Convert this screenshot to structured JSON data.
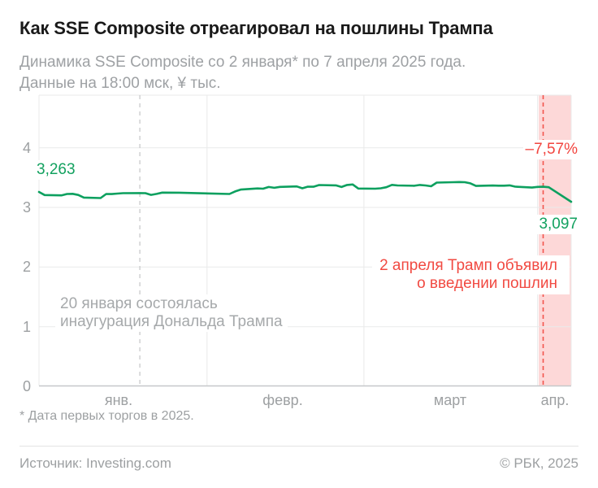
{
  "header": {
    "title": "Как SSE Composite отреагировал на пошлины Трампа",
    "subtitle_line1": "Динамика SSE Composite со 2 января* по 7 апреля 2025 года.",
    "subtitle_line2": "Данные на 18:00 мск, ¥ тыс."
  },
  "chart_data": {
    "type": "line",
    "title": "Динамика SSE Composite со 2 января по 7 апреля 2025 года, ¥ тыс.",
    "xlabel": "",
    "ylabel": "¥ тыс.",
    "ylim": [
      0,
      4.9
    ],
    "grid": true,
    "yticks": [
      4,
      3,
      2,
      1,
      0
    ],
    "ytick_labels": [
      "4",
      "3",
      "2",
      "1",
      "0"
    ],
    "xtick_labels": [
      "янв.",
      "февр.",
      "март",
      "апр."
    ],
    "month_gridlines": [
      "02-01",
      "03-01",
      "04-01"
    ],
    "colors": {
      "line": "#0da05f",
      "positive_label": "#12a15f",
      "negative_label": "#f2453f",
      "band": "#fdd8d8",
      "red_dash": "#f2544c",
      "gray_dash": "#c9cacc"
    },
    "series": [
      {
        "name": "SSE Composite",
        "color": "#0da05f",
        "points": [
          [
            "01-02",
            3263
          ],
          [
            "01-03",
            3211
          ],
          [
            "01-06",
            3206
          ],
          [
            "01-07",
            3229
          ],
          [
            "01-08",
            3231
          ],
          [
            "01-09",
            3212
          ],
          [
            "01-10",
            3168
          ],
          [
            "01-13",
            3161
          ],
          [
            "01-14",
            3228
          ],
          [
            "01-15",
            3227
          ],
          [
            "01-16",
            3236
          ],
          [
            "01-17",
            3242
          ],
          [
            "01-20",
            3244
          ],
          [
            "01-21",
            3243
          ],
          [
            "01-22",
            3214
          ],
          [
            "01-23",
            3230
          ],
          [
            "01-24",
            3252
          ],
          [
            "01-27",
            3251
          ],
          [
            "02-05",
            3229
          ],
          [
            "02-06",
            3271
          ],
          [
            "02-07",
            3303
          ],
          [
            "02-10",
            3322
          ],
          [
            "02-11",
            3318
          ],
          [
            "02-12",
            3346
          ],
          [
            "02-13",
            3332
          ],
          [
            "02-14",
            3347
          ],
          [
            "02-17",
            3356
          ],
          [
            "02-18",
            3324
          ],
          [
            "02-19",
            3351
          ],
          [
            "02-20",
            3350
          ],
          [
            "02-21",
            3379
          ],
          [
            "02-24",
            3373
          ],
          [
            "02-25",
            3346
          ],
          [
            "02-26",
            3380
          ],
          [
            "02-27",
            3388
          ],
          [
            "02-28",
            3320
          ],
          [
            "03-03",
            3317
          ],
          [
            "03-04",
            3324
          ],
          [
            "03-05",
            3342
          ],
          [
            "03-06",
            3381
          ],
          [
            "03-07",
            3372
          ],
          [
            "03-10",
            3366
          ],
          [
            "03-11",
            3380
          ],
          [
            "03-12",
            3372
          ],
          [
            "03-13",
            3359
          ],
          [
            "03-14",
            3420
          ],
          [
            "03-17",
            3426
          ],
          [
            "03-18",
            3430
          ],
          [
            "03-19",
            3427
          ],
          [
            "03-20",
            3408
          ],
          [
            "03-21",
            3364
          ],
          [
            "03-24",
            3370
          ],
          [
            "03-25",
            3368
          ],
          [
            "03-26",
            3368
          ],
          [
            "03-27",
            3373
          ],
          [
            "03-28",
            3351
          ],
          [
            "03-31",
            3336
          ],
          [
            "04-01",
            3348
          ],
          [
            "04-02",
            3350
          ],
          [
            "04-03",
            3342
          ],
          [
            "04-07",
            3097
          ]
        ]
      }
    ],
    "start_value_label": "3,263",
    "end_value_label": "3,097",
    "change_label": "–7,57%",
    "event_lines": [
      {
        "date": "01-20",
        "style": "gray-dashed"
      },
      {
        "date": "04-02",
        "style": "red-dashed"
      }
    ],
    "highlight_band": {
      "from": "04-02",
      "to": "04-07",
      "color": "#fdd8d8"
    },
    "annotations": {
      "inauguration": {
        "line1": "20 января состоялась",
        "line2": "инаугурация Дональда Трампа"
      },
      "tariffs": {
        "line1": "2 апреля Трамп объявил",
        "line2": "о введении пошлин"
      }
    }
  },
  "footnote": "* Дата первых торгов в 2025.",
  "footer": {
    "source": "Источник: Investing.com",
    "copyright": "© РБК, 2025"
  }
}
